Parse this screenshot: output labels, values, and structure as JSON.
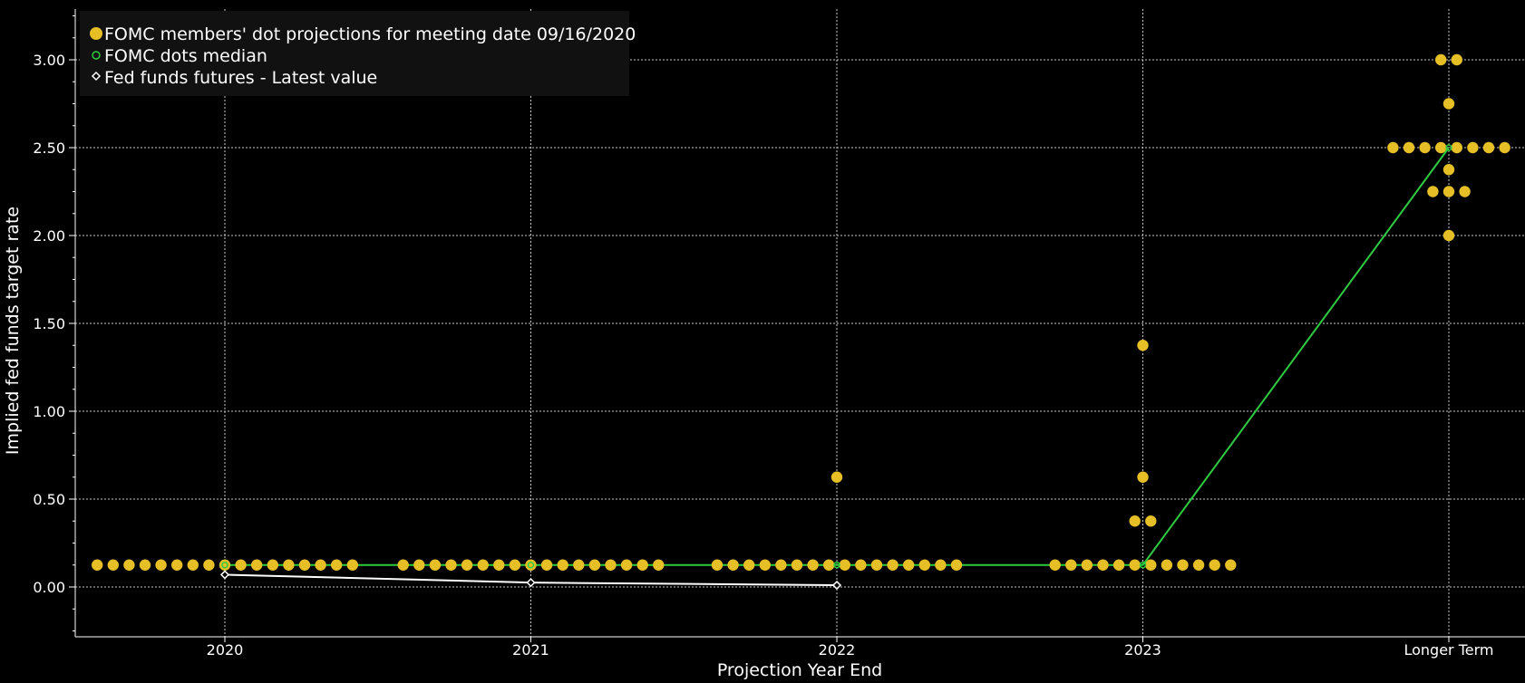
{
  "chart_data": {
    "type": "scatter",
    "title": "",
    "xlabel": "Projection Year End",
    "ylabel": "Implied fed funds target rate",
    "categories": [
      "2020",
      "2021",
      "2022",
      "2023",
      "Longer Term"
    ],
    "ylim": [
      -0.25,
      3.25
    ],
    "yticks": [
      "0.00",
      "0.50",
      "1.00",
      "1.50",
      "2.00",
      "2.50",
      "3.00"
    ],
    "grid": true,
    "legend_position": "top-left",
    "colors": {
      "dots": "#e6bf26",
      "median": "#2ecc40",
      "futures": "#ffffff",
      "grid": "#c8c8c8",
      "background": "#000000"
    },
    "legend": [
      {
        "label": "FOMC members' dot projections for meeting date 09/16/2020",
        "marker": "dot"
      },
      {
        "label": "FOMC dots median",
        "marker": "circle"
      },
      {
        "label": "Fed funds futures - Latest value",
        "marker": "diamond"
      }
    ],
    "series": [
      {
        "name": "FOMC members' dot projections for meeting date 09/16/2020",
        "values": [
          [
            [
              0.125,
              17
            ]
          ],
          [
            [
              0.125,
              17
            ]
          ],
          [
            [
              0.125,
              16
            ],
            [
              0.625,
              1
            ]
          ],
          [
            [
              0.125,
              12
            ],
            [
              0.375,
              2
            ],
            [
              0.625,
              1
            ],
            [
              1.375,
              1
            ]
          ],
          [
            [
              2.0,
              1
            ],
            [
              2.25,
              3
            ],
            [
              2.375,
              1
            ],
            [
              2.5,
              8
            ],
            [
              2.75,
              1
            ],
            [
              3.0,
              2
            ]
          ]
        ]
      },
      {
        "name": "FOMC dots median",
        "values": [
          0.125,
          0.125,
          0.125,
          0.125,
          2.5
        ]
      },
      {
        "name": "Fed funds futures - Latest value",
        "values": [
          0.07,
          0.025,
          0.01,
          null,
          null
        ]
      }
    ]
  }
}
